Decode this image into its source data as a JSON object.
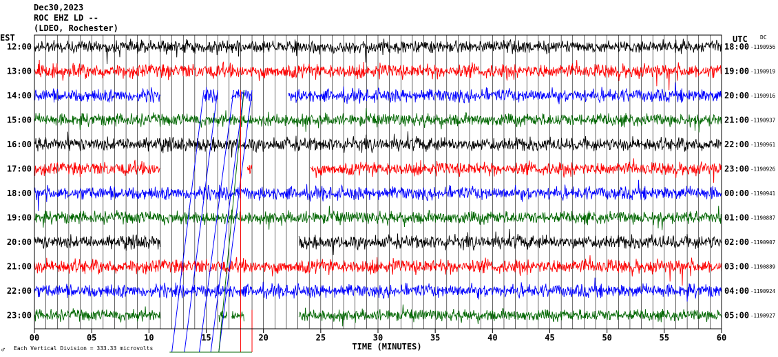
{
  "header": {
    "date": "Dec30,2023",
    "station": "ROC EHZ LD --",
    "network": "(LDEO, Rochester)"
  },
  "labels": {
    "left_timezone": "EST",
    "right_timezone": "UTC",
    "dc_label": "DC",
    "xlabel": "TIME (MINUTES)",
    "footer_mark": "♂",
    "scale_note": "Each Vertical Division = 333.33 microvolts"
  },
  "colors": {
    "trace_cycle": [
      "#000000",
      "#ff0000",
      "#0000ff",
      "#006600"
    ],
    "gridline": "#000000",
    "event_line_blue": "#0000ff",
    "event_line_green": "#006600",
    "event_line_red": "#ff0000",
    "background": "#ffffff"
  },
  "chart_data": {
    "type": "line",
    "title": "Dec30,2023 ROC EHZ LD -- (LDEO, Rochester)",
    "xlabel": "TIME (MINUTES)",
    "ylabel": "",
    "xlim": [
      0,
      60
    ],
    "x_ticks": [
      "00",
      "05",
      "10",
      "15",
      "20",
      "25",
      "30",
      "35",
      "40",
      "45",
      "50",
      "55",
      "60"
    ],
    "grid": "vertical every minute",
    "rows": [
      {
        "est": "12:00",
        "utc": "18:00",
        "dc": "-1190956",
        "amp": 6.5,
        "gaps": []
      },
      {
        "est": "13:00",
        "utc": "19:00",
        "dc": "-1190919",
        "amp": 7.5,
        "gaps": []
      },
      {
        "est": "14:00",
        "utc": "20:00",
        "dc": "-1190916",
        "amp": 7.0,
        "gaps": [
          [
            11,
            14.8
          ],
          [
            16,
            17.2
          ],
          [
            19,
            22.2
          ]
        ]
      },
      {
        "est": "15:00",
        "utc": "21:00",
        "dc": "-1190937",
        "amp": 6.5,
        "gaps": []
      },
      {
        "est": "16:00",
        "utc": "22:00",
        "dc": "-1190961",
        "amp": 7.0,
        "gaps": []
      },
      {
        "est": "17:00",
        "utc": "23:00",
        "dc": "-1190926",
        "amp": 7.0,
        "gaps": [
          [
            11,
            18.6
          ],
          [
            19,
            24.1
          ]
        ]
      },
      {
        "est": "18:00",
        "utc": "00:00",
        "dc": "-1190941",
        "amp": 7.0,
        "gaps": []
      },
      {
        "est": "19:00",
        "utc": "01:00",
        "dc": "-1190887",
        "amp": 6.5,
        "gaps": []
      },
      {
        "est": "20:00",
        "utc": "02:00",
        "dc": "-1190907",
        "amp": 7.0,
        "gaps": [
          [
            11,
            23.1
          ]
        ]
      },
      {
        "est": "21:00",
        "utc": "03:00",
        "dc": "-1190889",
        "amp": 7.5,
        "gaps": []
      },
      {
        "est": "22:00",
        "utc": "04:00",
        "dc": "-1190924",
        "amp": 7.0,
        "gaps": []
      },
      {
        "est": "23:00",
        "utc": "05:00",
        "dc": "-1190927",
        "amp": 6.0,
        "gaps": [
          [
            11,
            16.1
          ],
          [
            16.8,
            17.2
          ],
          [
            18.3,
            23.1
          ]
        ]
      }
    ],
    "event_lines": [
      {
        "color": "blue",
        "x_top": 14.8,
        "x_bottom": 12.0
      },
      {
        "color": "blue",
        "x_top": 16.0,
        "x_bottom": 13.1
      },
      {
        "color": "blue",
        "x_top": 17.4,
        "x_bottom": 14.4
      },
      {
        "color": "blue",
        "x_top": 18.3,
        "x_bottom": 15.4
      },
      {
        "color": "blue",
        "x_top": 19.0,
        "x_bottom": 16.1
      },
      {
        "color": "green",
        "x_top": 18.3,
        "x_bottom": 16.1
      },
      {
        "color": "red",
        "x_top": 18.0,
        "x_bottom": 18.0
      }
    ]
  }
}
